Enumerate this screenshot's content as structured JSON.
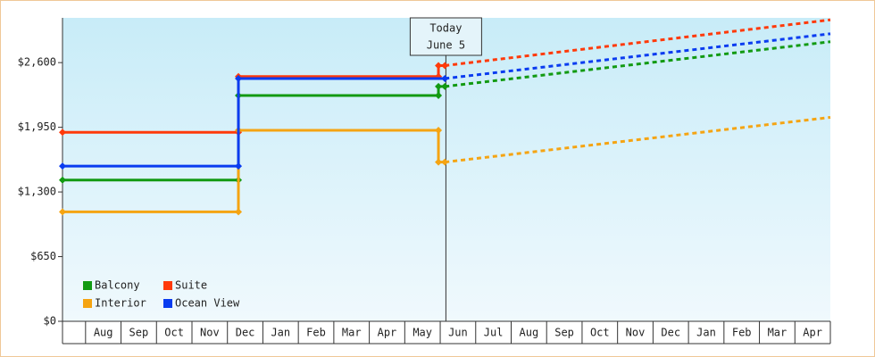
{
  "chart_data": {
    "type": "step-line",
    "categories": [
      null,
      "Aug",
      "Sep",
      "Oct",
      "Nov",
      "Dec",
      "Jan",
      "Feb",
      "Mar",
      "Apr",
      "May",
      "Jun",
      "Jul",
      "Aug",
      "Sep",
      "Oct",
      "Nov",
      "Dec",
      "Jan",
      "Feb",
      "Mar",
      "Apr"
    ],
    "xlim": [
      0.35,
      22
    ],
    "ylim": [
      0,
      3050
    ],
    "yticks": [
      {
        "value": 0,
        "label": "$0"
      },
      {
        "value": 650,
        "label": "$650"
      },
      {
        "value": 1300,
        "label": "$1,300"
      },
      {
        "value": 1950,
        "label": "$1,950"
      },
      {
        "value": 2600,
        "label": "$2,600"
      }
    ],
    "today": {
      "x": 11.16,
      "label": [
        "Today",
        "June 5"
      ]
    },
    "series": [
      {
        "name": "Balcony",
        "color": "#129a12",
        "x": [
          0.35,
          5.31,
          5.31,
          10.95,
          10.95,
          11.13
        ],
        "values": [
          1420,
          1420,
          2270,
          2270,
          2360,
          2360
        ],
        "forecast": {
          "x": [
            11.13,
            22
          ],
          "values": [
            2360,
            2810
          ]
        }
      },
      {
        "name": "Suite",
        "color": "#ff3a0a",
        "x": [
          0.35,
          5.31,
          5.31,
          10.95,
          10.95,
          11.13
        ],
        "values": [
          1900,
          1900,
          2460,
          2460,
          2570,
          2570
        ],
        "forecast": {
          "x": [
            11.13,
            22
          ],
          "values": [
            2570,
            3030
          ]
        }
      },
      {
        "name": "Interior",
        "color": "#f5a412",
        "x": [
          0.35,
          5.31,
          5.31,
          10.95,
          10.95,
          11.13
        ],
        "values": [
          1100,
          1100,
          1920,
          1920,
          1600,
          1600
        ],
        "forecast": {
          "x": [
            11.13,
            22
          ],
          "values": [
            1600,
            2050
          ]
        }
      },
      {
        "name": "Ocean View",
        "color": "#0a3cf0",
        "x": [
          0.35,
          5.31,
          5.31,
          11.13
        ],
        "values": [
          1560,
          1560,
          2440,
          2440
        ],
        "forecast": {
          "x": [
            11.13,
            22
          ],
          "values": [
            2440,
            2890
          ]
        }
      }
    ]
  }
}
